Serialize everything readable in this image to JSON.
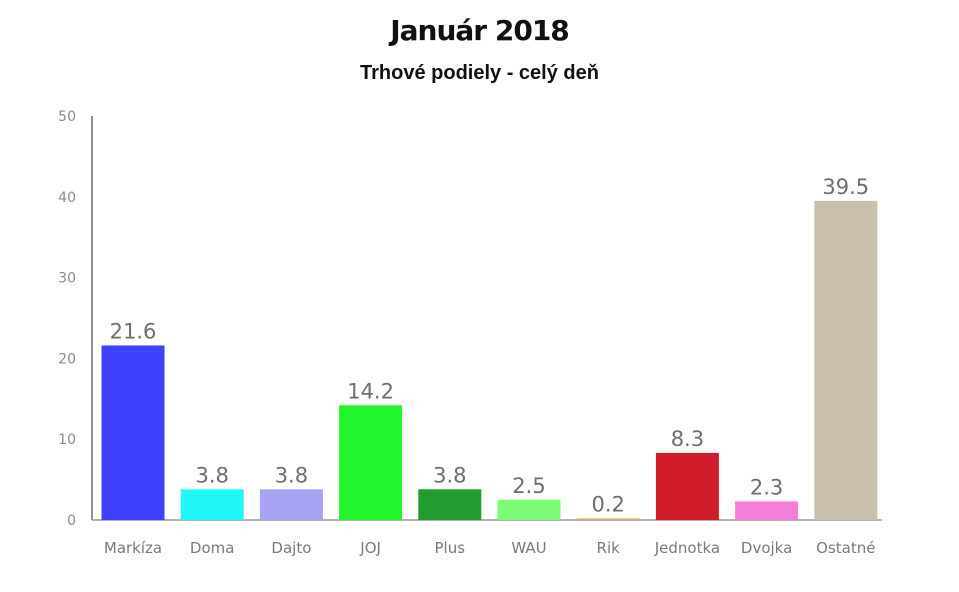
{
  "chart_data": {
    "type": "bar",
    "title": "Január 2018",
    "subtitle": "Trhové podiely - celý deň",
    "xlabel": "",
    "ylabel": "",
    "ylim": [
      0,
      50
    ],
    "yticks": [
      0,
      10,
      20,
      30,
      40,
      50
    ],
    "grid": false,
    "legend": "none",
    "categories": [
      "Markíza",
      "Doma",
      "Dajto",
      "JOJ",
      "Plus",
      "WAU",
      "Rik",
      "Jednotka",
      "Dvojka",
      "Ostatné"
    ],
    "values": [
      21.6,
      3.8,
      3.8,
      14.2,
      3.8,
      2.5,
      0.2,
      8.3,
      2.3,
      39.5
    ],
    "value_labels": [
      "21.6",
      "3.8",
      "3.8",
      "14.2",
      "3.8",
      "2.5",
      "0.2",
      "8.3",
      "2.3",
      "39.5"
    ],
    "colors": [
      "#4040ff",
      "#22f7f7",
      "#a9a3f5",
      "#22f52e",
      "#239b2f",
      "#7cfc76",
      "#d6b25e",
      "#d11d2b",
      "#f57fd8",
      "#c8c0ac"
    ]
  }
}
